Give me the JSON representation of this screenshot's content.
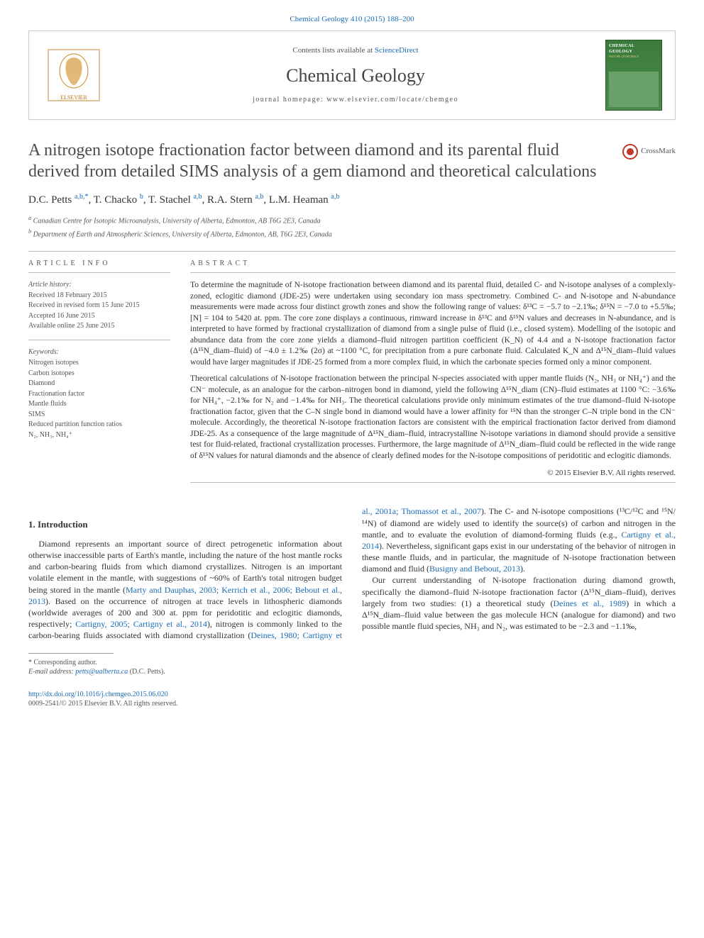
{
  "top_link": "Chemical Geology 410 (2015) 188–200",
  "header": {
    "contents_prefix": "Contents lists available at ",
    "contents_link": "ScienceDirect",
    "journal": "Chemical Geology",
    "homepage_prefix": "journal homepage: ",
    "homepage": "www.elsevier.com/locate/chemgeo",
    "cover_name": "CHEMICAL GEOLOGY",
    "cover_sub": "ISOTOPE GEOSCIENCE"
  },
  "crossmark": "CrossMark",
  "title": "A nitrogen isotope fractionation factor between diamond and its parental fluid derived from detailed SIMS analysis of a gem diamond and theoretical calculations",
  "authors_html": "D.C. Petts <sup>a,b,*</sup>, T. Chacko <sup>b</sup>, T. Stachel <sup>a,b</sup>, R.A. Stern <sup>a,b</sup>, L.M. Heaman <sup>a,b</sup>",
  "affiliations": {
    "a": "Canadian Centre for Isotopic Microanalysis, University of Alberta, Edmonton, AB T6G 2E3, Canada",
    "b": "Department of Earth and Atmospheric Sciences, University of Alberta, Edmonton, AB, T6G 2E3, Canada"
  },
  "info": {
    "heading": "ARTICLE INFO",
    "history_label": "Article history:",
    "history": [
      "Received 18 February 2015",
      "Received in revised form 15 June 2015",
      "Accepted 16 June 2015",
      "Available online 25 June 2015"
    ],
    "kw_heading": "Keywords:",
    "keywords": [
      "Nitrogen isotopes",
      "Carbon isotopes",
      "Diamond",
      "Fractionation factor",
      "Mantle fluids",
      "SIMS",
      "Reduced partition function ratios",
      "N₂, NH₃, NH₄⁺"
    ]
  },
  "abstract": {
    "heading": "ABSTRACT",
    "p1": "To determine the magnitude of N-isotope fractionation between diamond and its parental fluid, detailed C- and N-isotope analyses of a complexly-zoned, eclogitic diamond (JDE-25) were undertaken using secondary ion mass spectrometry. Combined C- and N-isotope and N-abundance measurements were made across four distinct growth zones and show the following range of values: δ¹³C = −5.7 to −2.1‰; δ¹⁵N = −7.0 to +5.5‰; [N] = 104 to 5420 at. ppm. The core zone displays a continuous, rimward increase in δ¹³C and δ¹⁵N values and decreases in N-abundance, and is interpreted to have formed by fractional crystallization of diamond from a single pulse of fluid (i.e., closed system). Modelling of the isotopic and abundance data from the core zone yields a diamond–fluid nitrogen partition coefficient (K_N) of 4.4 and a N-isotope fractionation factor (Δ¹⁵N_diam–fluid) of −4.0 ± 1.2‰ (2σ) at ~1100 °C, for precipitation from a pure carbonate fluid. Calculated K_N and Δ¹⁵N_diam–fluid values would have larger magnitudes if JDE-25 formed from a more complex fluid, in which the carbonate species formed only a minor component.",
    "p2": "Theoretical calculations of N-isotope fractionation between the principal N-species associated with upper mantle fluids (N₂, NH₃ or NH₄⁺) and the CN⁻ molecule, as an analogue for the carbon–nitrogen bond in diamond, yield the following Δ¹⁵N_diam (CN)–fluid estimates at 1100 °C: −3.6‰ for NH₄⁺, −2.1‰ for N₂ and −1.4‰ for NH₃. The theoretical calculations provide only minimum estimates of the true diamond–fluid N-isotope fractionation factor, given that the C–N single bond in diamond would have a lower affinity for ¹⁵N than the stronger C–N triple bond in the CN⁻ molecule. Accordingly, the theoretical N-isotope fractionation factors are consistent with the empirical fractionation factor derived from diamond JDE-25. As a consequence of the large magnitude of Δ¹⁵N_diam–fluid, intracrystalline N-isotope variations in diamond should provide a sensitive test for fluid-related, fractional crystallization processes. Furthermore, the large magnitude of Δ¹⁵N_diam–fluid could be reflected in the wide range of δ¹⁵N values for natural diamonds and the absence of clearly defined modes for the N-isotope compositions of peridotitic and eclogitic diamonds.",
    "copyright": "© 2015 Elsevier B.V. All rights reserved."
  },
  "section1_heading": "1. Introduction",
  "body": {
    "p1_a": "Diamond represents an important source of direct petrogenetic information about otherwise inaccessible parts of Earth's mantle, including the nature of the host mantle rocks and carbon-bearing fluids from which diamond crystallizes. Nitrogen is an important volatile element in the mantle, with suggestions of ~60% of Earth's total nitrogen budget being stored in the mantle (",
    "p1_ref1": "Marty and Dauphas, 2003; Kerrich et al., 2006; Bebout et al., 2013",
    "p1_b": "). Based on the occurrence of nitrogen at trace levels in lithospheric diamonds (worldwide averages of 200 and 300 at. ppm for peridotitic and eclogitic diamonds, respectively; ",
    "p1_ref2": "Cartigny, 2005; Cartigny et al., 2014",
    "p1_c": "), nitrogen is commonly linked to ",
    "p2_a": "the carbon-bearing fluids associated with diamond crystallization (",
    "p2_ref1": "Deines, 1980; Cartigny et al., 2001a; Thomassot et al., 2007",
    "p2_b": "). The C- and N-isotope compositions (¹³C/¹²C and ¹⁵N/¹⁴N) of diamond are widely used to identify the source(s) of carbon and nitrogen in the mantle, and to evaluate the evolution of diamond-forming fluids (e.g., ",
    "p2_ref2": "Cartigny et al., 2014",
    "p2_c": "). Nevertheless, significant gaps exist in our understating of the behavior of nitrogen in these mantle fluids, and in particular, the magnitude of N-isotope fractionation between diamond and fluid (",
    "p2_ref3": "Busigny and Bebout, 2013",
    "p2_d": ").",
    "p3_a": "Our current understanding of N-isotope fractionation during diamond growth, specifically the diamond–fluid N-isotope fractionation factor (Δ¹⁵N_diam–fluid), derives largely from two studies: (1) a theoretical study (",
    "p3_ref1": "Deines et al., 1989",
    "p3_b": ") in which a Δ¹⁵N_diam–fluid value between the gas molecule HCN (analogue for diamond) and two possible mantle fluid species, NH₃ and N₂, was estimated to be −2.3 and −1.1‰,"
  },
  "corr": {
    "star": "* Corresponding author.",
    "email_label": "E-mail address: ",
    "email": "petts@ualberta.ca",
    "who": " (D.C. Petts)."
  },
  "bottom": {
    "doi": "http://dx.doi.org/10.1016/j.chemgeo.2015.06.020",
    "issn": "0009-2541/© 2015 Elsevier B.V. All rights reserved."
  },
  "colors": {
    "link": "#1a6bb5",
    "text": "#333333",
    "muted": "#555555",
    "rule": "#bbbbbb",
    "cover_bg": "#3a7a3a"
  }
}
